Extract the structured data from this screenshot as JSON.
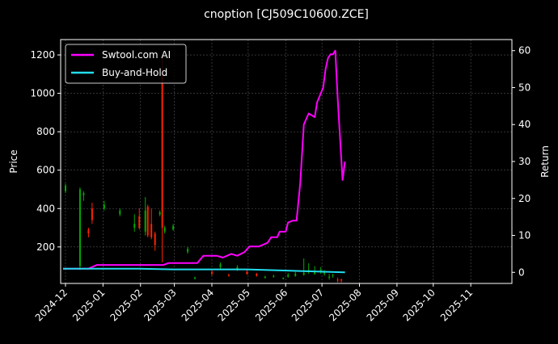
{
  "chart_data": {
    "type": "line",
    "title": "cnoption [CJ509C10600.ZCE]",
    "ylabel": "Price",
    "y2label": "Return",
    "xlabel": "",
    "x_ticks": [
      "2024-12",
      "2025-01",
      "2025-02",
      "2025-03",
      "2025-04",
      "2025-05",
      "2025-06",
      "2025-07",
      "2025-08",
      "2025-09",
      "2025-10",
      "2025-11"
    ],
    "y_ticks": [
      200,
      400,
      600,
      800,
      1000,
      1200
    ],
    "y2_ticks": [
      0,
      10,
      20,
      30,
      40,
      50,
      60
    ],
    "ylim": [
      10,
      1280
    ],
    "y2lim": [
      -3,
      63
    ],
    "xlim": [
      "2024-11-27",
      "2025-12-05"
    ],
    "grid": true,
    "legend_position": "upper-left",
    "colors": {
      "background": "#000000",
      "grid": "#555555",
      "up_candle": "#00aa00",
      "down_candle": "#ff2200",
      "swtool": "#ff00ff",
      "buyhold": "#22ddee"
    },
    "series": [
      {
        "name": "Swtool.com AI",
        "axis": "right",
        "x": [
          "2024-11-29",
          "2024-12-10",
          "2024-12-20",
          "2024-12-27",
          "2025-01-03",
          "2025-01-15",
          "2025-01-31",
          "2025-02-10",
          "2025-02-20",
          "2025-02-24",
          "2025-03-07",
          "2025-03-20",
          "2025-03-25",
          "2025-03-28",
          "2025-04-05",
          "2025-04-10",
          "2025-04-17",
          "2025-04-22",
          "2025-04-28",
          "2025-05-02",
          "2025-05-10",
          "2025-05-17",
          "2025-05-20",
          "2025-05-25",
          "2025-05-27",
          "2025-06-01",
          "2025-06-03",
          "2025-06-07",
          "2025-06-10",
          "2025-06-13",
          "2025-06-16",
          "2025-06-20",
          "2025-06-25",
          "2025-06-27",
          "2025-07-02",
          "2025-07-04",
          "2025-07-06",
          "2025-07-08",
          "2025-07-10",
          "2025-07-12",
          "2025-07-14",
          "2025-07-18",
          "2025-07-20"
        ],
        "values": [
          1,
          1,
          1,
          2,
          2,
          2,
          2,
          2,
          2,
          2.5,
          2.5,
          2.5,
          4.5,
          4.5,
          4.5,
          4,
          5,
          4.5,
          5.5,
          7,
          7,
          8,
          9.5,
          9.5,
          11,
          11,
          13.5,
          14,
          14,
          24,
          40,
          43,
          42,
          46,
          50,
          55,
          58,
          59,
          59,
          60,
          47,
          25,
          30
        ]
      },
      {
        "name": "Buy-and-Hold",
        "axis": "right",
        "x": [
          "2024-11-29",
          "2024-12-31",
          "2025-01-31",
          "2025-02-28",
          "2025-03-31",
          "2025-04-30",
          "2025-05-31",
          "2025-06-30",
          "2025-07-20"
        ],
        "values": [
          1,
          1,
          1,
          0.8,
          0.8,
          0.8,
          0.5,
          0.2,
          0
        ]
      }
    ],
    "candles": {
      "axis": "left",
      "x": [
        "2024-12-01",
        "2024-12-13",
        "2024-12-16",
        "2024-12-20",
        "2024-12-23",
        "2025-01-02",
        "2025-01-15",
        "2025-01-27",
        "2025-01-31",
        "2025-02-05",
        "2025-02-07",
        "2025-02-10",
        "2025-02-13",
        "2025-02-17",
        "2025-02-19",
        "2025-02-21",
        "2025-02-28",
        "2025-03-12",
        "2025-03-18",
        "2025-04-01",
        "2025-04-08",
        "2025-04-15",
        "2025-04-22",
        "2025-04-30",
        "2025-05-08",
        "2025-05-15",
        "2025-05-22",
        "2025-05-30",
        "2025-06-03",
        "2025-06-09",
        "2025-06-16",
        "2025-06-20",
        "2025-06-25",
        "2025-06-30",
        "2025-07-03",
        "2025-07-07",
        "2025-07-10",
        "2025-07-14",
        "2025-07-17"
      ],
      "open": [
        490,
        100,
        470,
        290,
        400,
        400,
        370,
        300,
        360,
        280,
        410,
        320,
        270,
        370,
        1100,
        280,
        290,
        175,
        35,
        70,
        95,
        55,
        80,
        70,
        60,
        40,
        45,
        35,
        45,
        50,
        55,
        70,
        60,
        70,
        60,
        40,
        50,
        30,
        30
      ],
      "close": [
        520,
        500,
        480,
        270,
        340,
        420,
        390,
        320,
        300,
        390,
        260,
        250,
        210,
        380,
        300,
        300,
        310,
        190,
        40,
        60,
        110,
        50,
        95,
        60,
        50,
        45,
        50,
        40,
        55,
        60,
        65,
        80,
        75,
        80,
        70,
        45,
        55,
        25,
        25
      ],
      "high": [
        530,
        510,
        490,
        300,
        430,
        440,
        400,
        370,
        400,
        460,
        420,
        400,
        280,
        390,
        1200,
        310,
        320,
        200,
        45,
        80,
        120,
        60,
        105,
        85,
        65,
        50,
        55,
        40,
        65,
        70,
        140,
        115,
        100,
        95,
        80,
        60,
        60,
        40,
        35
      ],
      "low": [
        480,
        80,
        440,
        250,
        320,
        390,
        360,
        280,
        290,
        260,
        250,
        240,
        180,
        360,
        120,
        270,
        285,
        165,
        30,
        50,
        85,
        45,
        75,
        55,
        45,
        35,
        40,
        30,
        40,
        45,
        50,
        60,
        55,
        60,
        50,
        30,
        40,
        15,
        15
      ]
    }
  }
}
